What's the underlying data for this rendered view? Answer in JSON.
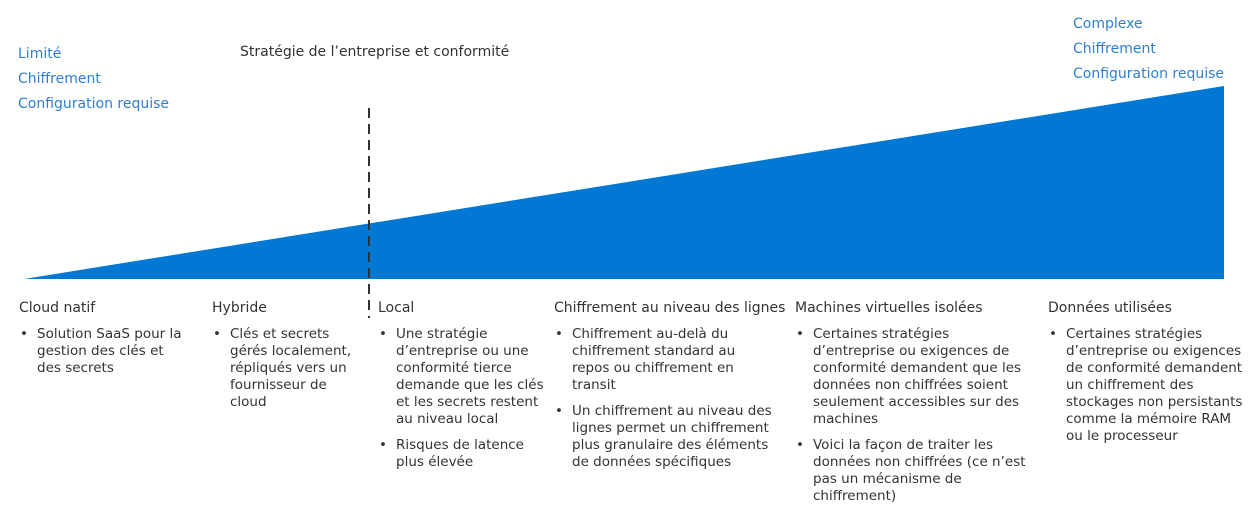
{
  "left_labels": [
    "Limité",
    "Chiffrement",
    "Configuration requise"
  ],
  "right_labels": [
    "Complexe",
    "Chiffrement",
    "Configuration requise"
  ],
  "top_heading": "Stratégie de l’entreprise et conformité",
  "colors": {
    "wedge": "#0078d4",
    "label_blue": "#2f7fcf",
    "text": "#333333",
    "divider": "#333333"
  },
  "columns": [
    {
      "title": "Cloud natif",
      "bullets": [
        "Solution SaaS pour la gestion des clés et des secrets"
      ]
    },
    {
      "title": "Hybride",
      "bullets": [
        "Clés et secrets gérés localement, répliqués vers un fournisseur de cloud"
      ]
    },
    {
      "title": "Local",
      "bullets": [
        "Une stratégie d’entreprise ou une conformité tierce demande que les clés et les secrets restent au niveau local",
        "Risques de latence plus élevée"
      ]
    },
    {
      "title": "Chiffrement au niveau des lignes",
      "bullets": [
        "Chiffrement au-delà du chiffrement standard au repos ou chiffrement en transit",
        "Un chiffrement au niveau des lignes permet un chiffrement plus granulaire des éléments de données spécifiques"
      ]
    },
    {
      "title": "Machines virtuelles isolées",
      "bullets": [
        "Certaines stratégies d’entreprise ou exigences de conformité demandent que les données non chiffrées soient seulement accessibles sur des machines",
        "Voici la façon de traiter les données non chiffrées (ce n’est pas un mécanisme de chiffrement)"
      ]
    },
    {
      "title": "Données utilisées",
      "bullets": [
        "Certaines stratégies d’entreprise ou exigences de conformité demandent un chiffrement des stockages non persistants comme la mémoire RAM ou le processeur"
      ]
    }
  ]
}
